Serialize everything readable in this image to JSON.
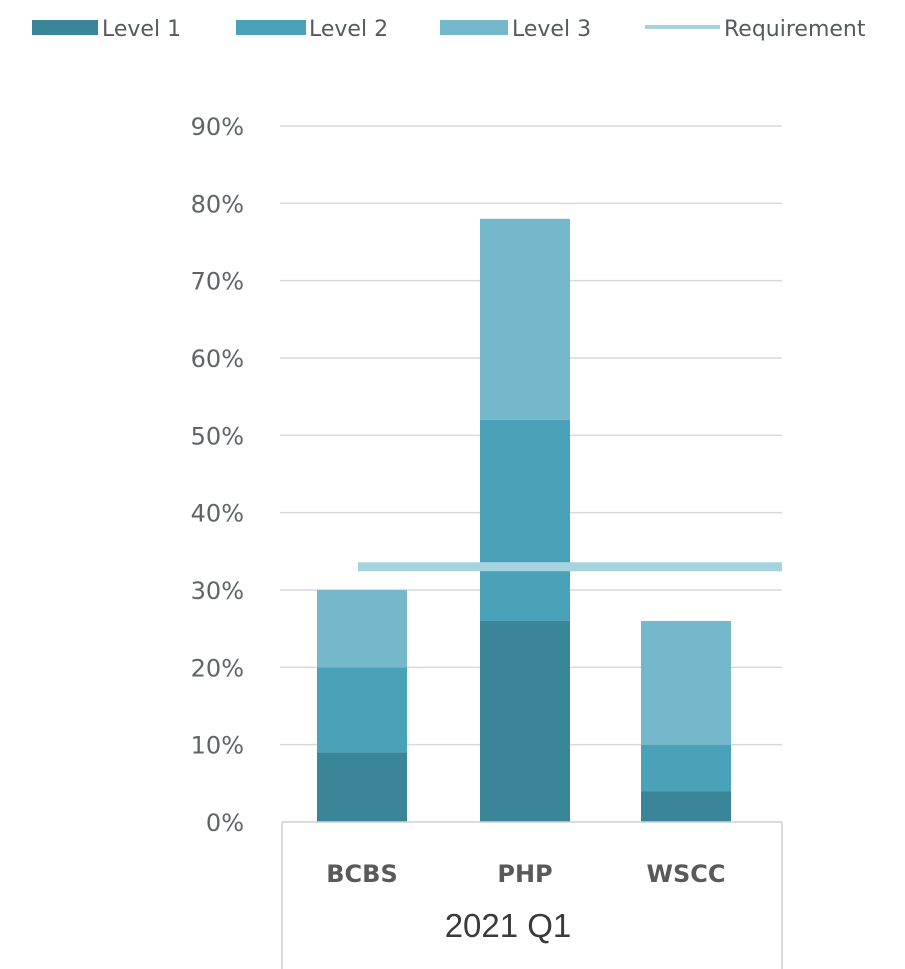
{
  "chart_data": {
    "type": "bar",
    "stacked": true,
    "categories": [
      "BCBS",
      "PHP",
      "WSCC"
    ],
    "group_label": "2021 Q1",
    "series": [
      {
        "name": "Level 1",
        "values": [
          9,
          26,
          4
        ],
        "color": "#3a8597"
      },
      {
        "name": "Level 2",
        "values": [
          11,
          26,
          6
        ],
        "color": "#49a2b8"
      },
      {
        "name": "Level 3",
        "values": [
          10,
          26,
          16
        ],
        "color": "#76b8cb"
      }
    ],
    "reference_line": {
      "name": "Requirement",
      "value": 33,
      "color": "#a7d3df"
    },
    "y_ticks": [
      "0%",
      "10%",
      "20%",
      "30%",
      "40%",
      "50%",
      "60%",
      "70%",
      "80%",
      "90%"
    ],
    "ylim": [
      0,
      90
    ],
    "grid": true,
    "legend_position": "top"
  }
}
